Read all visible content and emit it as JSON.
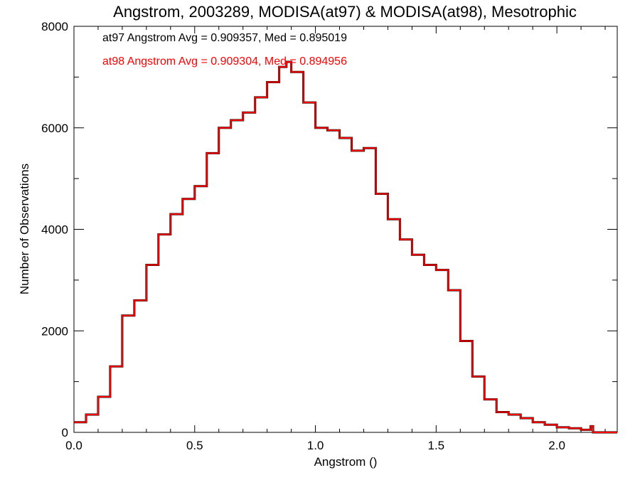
{
  "chart_data": {
    "type": "line",
    "step": true,
    "title": "Angstrom, 2003289, MODISA(at97) & MODISA(at98), Mesotrophic",
    "xlabel": "Angstrom ()",
    "ylabel": "Number of Observations",
    "xlim": [
      0.0,
      2.25
    ],
    "ylim": [
      0,
      8000
    ],
    "x_ticks": [
      0.0,
      0.5,
      1.0,
      1.5,
      2.0
    ],
    "x_tick_labels": [
      "0.0",
      "0.5",
      "1.0",
      "1.5",
      "2.0"
    ],
    "y_ticks": [
      0,
      2000,
      4000,
      6000,
      8000
    ],
    "y_tick_labels": [
      "0",
      "2000",
      "4000",
      "6000",
      "8000"
    ],
    "annotations": [
      {
        "text": "at97 Angstrom Avg = 0.909357, Med = 0.895019",
        "color": "#000000"
      },
      {
        "text": "at98 Angstrom Avg = 0.909304, Med = 0.894956",
        "color": "#ff0000"
      }
    ],
    "x": [
      0.0,
      0.05,
      0.1,
      0.15,
      0.2,
      0.25,
      0.3,
      0.35,
      0.4,
      0.45,
      0.5,
      0.55,
      0.6,
      0.65,
      0.7,
      0.75,
      0.8,
      0.85,
      0.88,
      0.9,
      0.95,
      1.0,
      1.05,
      1.1,
      1.15,
      1.2,
      1.25,
      1.3,
      1.35,
      1.4,
      1.45,
      1.5,
      1.55,
      1.6,
      1.65,
      1.7,
      1.75,
      1.8,
      1.85,
      1.9,
      1.95,
      2.0,
      2.05,
      2.1,
      2.14,
      2.15,
      2.2,
      2.25
    ],
    "series": [
      {
        "name": "at97",
        "color": "#000000",
        "values": [
          200,
          350,
          700,
          1300,
          2300,
          2600,
          3300,
          3900,
          4300,
          4600,
          4850,
          5500,
          6000,
          6150,
          6300,
          6600,
          6900,
          7200,
          7300,
          7100,
          6500,
          6000,
          5950,
          5800,
          5550,
          5600,
          4700,
          4200,
          3800,
          3500,
          3300,
          3200,
          2800,
          1800,
          1100,
          650,
          400,
          350,
          280,
          200,
          150,
          100,
          80,
          50,
          120,
          0,
          0,
          0
        ]
      },
      {
        "name": "at98",
        "color": "#ff0000",
        "values": [
          200,
          350,
          700,
          1300,
          2300,
          2600,
          3300,
          3900,
          4300,
          4600,
          4850,
          5500,
          6000,
          6150,
          6300,
          6600,
          6900,
          7200,
          7300,
          7100,
          6500,
          6000,
          5950,
          5800,
          5550,
          5600,
          4700,
          4200,
          3800,
          3500,
          3300,
          3200,
          2800,
          1800,
          1100,
          650,
          400,
          350,
          280,
          200,
          150,
          100,
          80,
          50,
          120,
          0,
          0,
          0
        ]
      }
    ]
  }
}
